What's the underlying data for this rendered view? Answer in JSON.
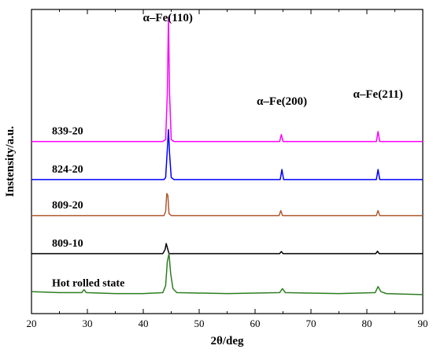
{
  "chart_data": {
    "type": "line",
    "xlabel": "2θ/deg",
    "ylabel": "Instensity/a.u.",
    "xlim": [
      20,
      90
    ],
    "xticks": [
      "20",
      "30",
      "40",
      "50",
      "60",
      "70",
      "80",
      "90"
    ],
    "yticks_shown": false,
    "series": [
      {
        "name": "839-20",
        "color": "#ff00ff",
        "baseline": 7.6,
        "points": [
          [
            20,
            7.6
          ],
          [
            43.5,
            7.6
          ],
          [
            44.0,
            7.7
          ],
          [
            44.3,
            10.0
          ],
          [
            44.5,
            13.8
          ],
          [
            44.7,
            10.0
          ],
          [
            45.0,
            7.7
          ],
          [
            45.5,
            7.6
          ],
          [
            64.4,
            7.6
          ],
          [
            64.7,
            7.95
          ],
          [
            65.0,
            7.6
          ],
          [
            81.7,
            7.6
          ],
          [
            82.0,
            8.1
          ],
          [
            82.3,
            7.6
          ],
          [
            90,
            7.6
          ]
        ]
      },
      {
        "name": "824-20",
        "color": "#0000ff",
        "baseline": 5.7,
        "points": [
          [
            20,
            5.7
          ],
          [
            43.7,
            5.7
          ],
          [
            44.0,
            5.8
          ],
          [
            44.3,
            7.2
          ],
          [
            44.5,
            8.2
          ],
          [
            44.7,
            7.0
          ],
          [
            45.0,
            5.8
          ],
          [
            45.5,
            5.7
          ],
          [
            64.5,
            5.7
          ],
          [
            64.8,
            6.2
          ],
          [
            65.1,
            5.7
          ],
          [
            81.7,
            5.7
          ],
          [
            82.0,
            6.2
          ],
          [
            82.3,
            5.7
          ],
          [
            90,
            5.7
          ]
        ]
      },
      {
        "name": "809-20",
        "color": "#b05a30",
        "baseline": 3.9,
        "points": [
          [
            20,
            3.9
          ],
          [
            43.7,
            3.9
          ],
          [
            44.0,
            4.1
          ],
          [
            44.2,
            5.0
          ],
          [
            44.4,
            4.9
          ],
          [
            44.6,
            4.0
          ],
          [
            45.0,
            3.9
          ],
          [
            64.3,
            3.9
          ],
          [
            64.6,
            4.15
          ],
          [
            64.9,
            3.9
          ],
          [
            81.7,
            3.9
          ],
          [
            82.0,
            4.15
          ],
          [
            82.3,
            3.9
          ],
          [
            90,
            3.9
          ]
        ]
      },
      {
        "name": "809-10",
        "color": "#000000",
        "baseline": 2.0,
        "points": [
          [
            20,
            2.0
          ],
          [
            43.5,
            2.0
          ],
          [
            43.9,
            2.2
          ],
          [
            44.1,
            2.5
          ],
          [
            44.3,
            2.3
          ],
          [
            44.6,
            2.0
          ],
          [
            64.4,
            2.0
          ],
          [
            64.7,
            2.1
          ],
          [
            65.0,
            2.0
          ],
          [
            81.6,
            2.0
          ],
          [
            81.9,
            2.12
          ],
          [
            82.2,
            2.0
          ],
          [
            90,
            2.0
          ]
        ]
      },
      {
        "name": "Hot rolled state",
        "color": "#2e7d22",
        "baseline": 0.0,
        "points": [
          [
            20,
            0.1
          ],
          [
            25,
            0.05
          ],
          [
            29.0,
            0.05
          ],
          [
            29.4,
            0.2
          ],
          [
            29.8,
            0.05
          ],
          [
            35,
            0.0
          ],
          [
            40,
            0.0
          ],
          [
            43.5,
            0.05
          ],
          [
            44.0,
            0.4
          ],
          [
            44.3,
            1.6
          ],
          [
            44.6,
            2.0
          ],
          [
            44.9,
            1.0
          ],
          [
            45.3,
            0.25
          ],
          [
            46.0,
            0.05
          ],
          [
            55,
            0.0
          ],
          [
            64.4,
            0.05
          ],
          [
            64.9,
            0.25
          ],
          [
            65.4,
            0.05
          ],
          [
            75,
            0.0
          ],
          [
            81.5,
            0.05
          ],
          [
            82.0,
            0.35
          ],
          [
            82.5,
            0.1
          ],
          [
            83.5,
            0.0
          ],
          [
            90,
            -0.05
          ]
        ]
      }
    ],
    "annotations": [
      {
        "text": "α–Fe(110)",
        "x": 44.4
      },
      {
        "text": "α–Fe(200)",
        "x": 64.8
      },
      {
        "text": "α–Fe(211)",
        "x": 82.0
      }
    ]
  }
}
